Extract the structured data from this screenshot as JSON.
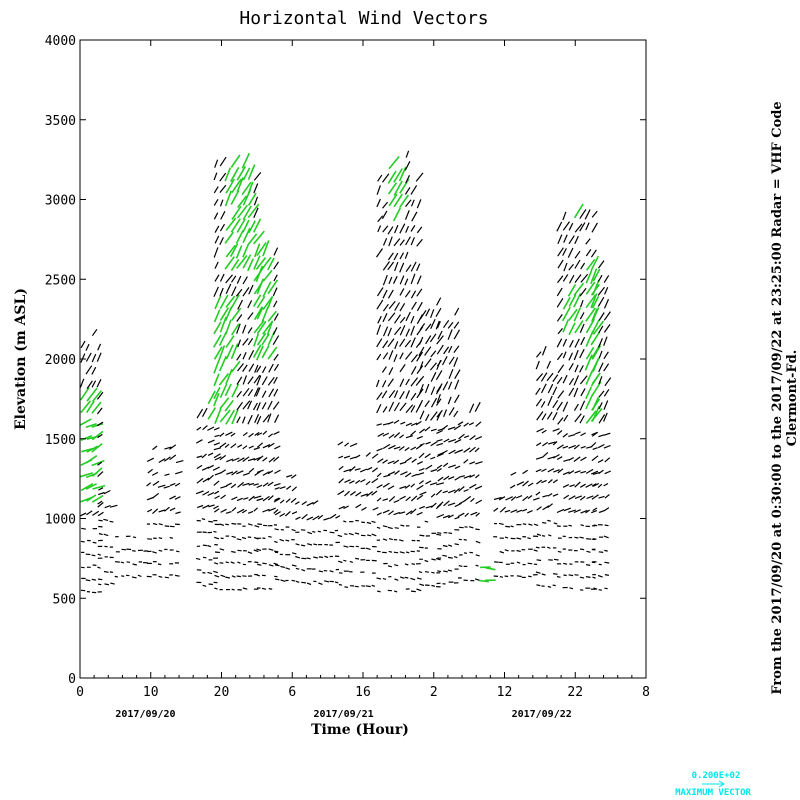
{
  "chart_data": {
    "type": "vector",
    "title": "Horizontal Wind Vectors",
    "xlabel": "Time (Hour)",
    "ylabel": "Elevation (m ASL)",
    "xlim": [
      0,
      80
    ],
    "ylim": [
      0,
      4000
    ],
    "x_ticks": [
      {
        "value": 0,
        "label": "0"
      },
      {
        "value": 10,
        "label": "10"
      },
      {
        "value": 20,
        "label": "20"
      },
      {
        "value": 30,
        "label": "6"
      },
      {
        "value": 40,
        "label": "16"
      },
      {
        "value": 50,
        "label": "2"
      },
      {
        "value": 60,
        "label": "12"
      },
      {
        "value": 70,
        "label": "22"
      },
      {
        "value": 80,
        "label": "8"
      }
    ],
    "y_ticks": [
      0,
      500,
      1000,
      1500,
      2000,
      2500,
      3000,
      3500,
      4000
    ],
    "date_labels": [
      {
        "value": 5,
        "label": "2017/09/20"
      },
      {
        "value": 33,
        "label": "2017/09/21"
      },
      {
        "value": 61,
        "label": "2017/09/22"
      }
    ],
    "side_text_line1": "From the 2017/09/20 at  0:30:00 to the 2017/09/22 at 23:25:00 Radar = VHF Code",
    "side_text_line2": "Clermont-Fd.",
    "key_value": "0.200E+02",
    "key_label": "MAXIMUM VECTOR",
    "colors": {
      "vector": "#000000",
      "strong_vector": "#22cc22",
      "key": "#00e5ee"
    },
    "columns": [
      {
        "x0": 0.1,
        "x1": 2.6,
        "y0": 500,
        "y1": 2200
      },
      {
        "x0": 2.6,
        "x1": 5.0,
        "y0": 550,
        "y1": 1200
      },
      {
        "x0": 5.0,
        "x1": 9.5,
        "y0": 600,
        "y1": 950
      },
      {
        "x0": 9.5,
        "x1": 14.2,
        "y0": 600,
        "y1": 1500
      },
      {
        "x0": 16.5,
        "x1": 19.0,
        "y0": 550,
        "y1": 1800
      },
      {
        "x0": 19.0,
        "x1": 25.0,
        "y0": 520,
        "y1": 3280
      },
      {
        "x0": 25.0,
        "x1": 27.5,
        "y0": 520,
        "y1": 2800
      },
      {
        "x0": 27.5,
        "x1": 30.5,
        "y0": 580,
        "y1": 1350
      },
      {
        "x0": 30.5,
        "x1": 36.5,
        "y0": 560,
        "y1": 1150
      },
      {
        "x0": 36.5,
        "x1": 42.0,
        "y0": 540,
        "y1": 1530
      },
      {
        "x0": 42.0,
        "x1": 48.0,
        "y0": 510,
        "y1": 3280
      },
      {
        "x0": 48.0,
        "x1": 50.5,
        "y0": 540,
        "y1": 2400
      },
      {
        "x0": 50.5,
        "x1": 53.5,
        "y0": 560,
        "y1": 2300
      },
      {
        "x0": 53.5,
        "x1": 56.5,
        "y0": 580,
        "y1": 1700
      },
      {
        "x0": 56.5,
        "x1": 57.8,
        "y0": 580,
        "y1": 860
      },
      {
        "x0": 58.5,
        "x1": 64.5,
        "y0": 600,
        "y1": 1300
      },
      {
        "x0": 64.5,
        "x1": 67.5,
        "y0": 540,
        "y1": 2050
      },
      {
        "x0": 67.5,
        "x1": 72.5,
        "y0": 520,
        "y1": 3000
      },
      {
        "x0": 72.5,
        "x1": 74.5,
        "y0": 520,
        "y1": 2650
      }
    ],
    "strong_regions": [
      {
        "x0": 0.0,
        "x1": 2.4,
        "y0": 1050,
        "y1": 1750
      },
      {
        "x0": 18.0,
        "x1": 21.5,
        "y0": 1600,
        "y1": 2350
      },
      {
        "x0": 20.0,
        "x1": 24.5,
        "y0": 2550,
        "y1": 3280
      },
      {
        "x0": 24.0,
        "x1": 26.8,
        "y0": 2000,
        "y1": 2800
      },
      {
        "x0": 43.0,
        "x1": 45.5,
        "y0": 2850,
        "y1": 3290
      },
      {
        "x0": 48.0,
        "x1": 51.0,
        "y0": 2350,
        "y1": 2700
      },
      {
        "x0": 68.0,
        "x1": 70.0,
        "y0": 2150,
        "y1": 2460
      },
      {
        "x0": 69.2,
        "x1": 70.3,
        "y0": 2850,
        "y1": 3000
      },
      {
        "x0": 71.0,
        "x1": 73.0,
        "y0": 1600,
        "y1": 2600
      },
      {
        "x0": 56.5,
        "x1": 57.5,
        "y0": 560,
        "y1": 700
      }
    ]
  }
}
